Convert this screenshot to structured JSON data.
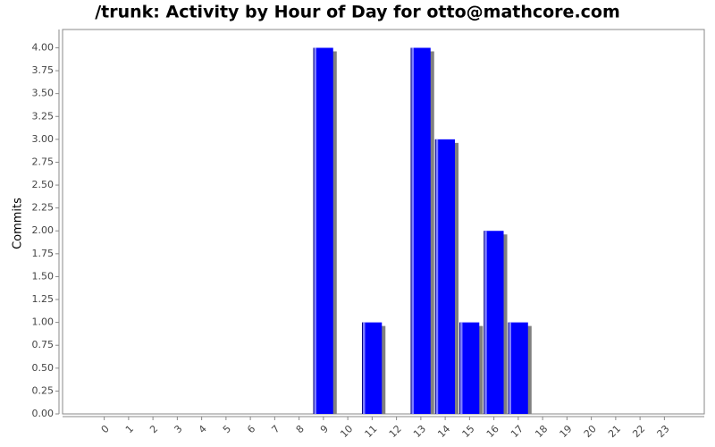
{
  "chart_data": {
    "type": "bar",
    "title": "/trunk: Activity by Hour of Day for otto@mathcore.com",
    "y_label": "Commits",
    "categories": [
      "0",
      "1",
      "2",
      "3",
      "4",
      "5",
      "6",
      "7",
      "8",
      "9",
      "10",
      "11",
      "12",
      "13",
      "14",
      "15",
      "16",
      "17",
      "18",
      "19",
      "20",
      "21",
      "22",
      "23"
    ],
    "values": [
      0,
      0,
      0,
      0,
      0,
      0,
      0,
      0,
      0,
      4,
      0,
      1,
      0,
      4,
      3,
      1,
      2,
      1,
      0,
      0,
      0,
      0,
      0,
      0
    ],
    "color": "#0000ff",
    "ylim": [
      0,
      4.2
    ],
    "yticks": [
      {
        "value": 0,
        "label": "0.00"
      },
      {
        "value": 0.25,
        "label": "0.25"
      },
      {
        "value": 0.5,
        "label": "0.50"
      },
      {
        "value": 0.75,
        "label": "0.75"
      },
      {
        "value": 1,
        "label": "1.00"
      },
      {
        "value": 1.25,
        "label": "1.25"
      },
      {
        "value": 1.5,
        "label": "1.50"
      },
      {
        "value": 1.75,
        "label": "1.75"
      },
      {
        "value": 2,
        "label": "2.00"
      },
      {
        "value": 2.25,
        "label": "2.25"
      },
      {
        "value": 2.5,
        "label": "2.50"
      },
      {
        "value": 2.75,
        "label": "2.75"
      },
      {
        "value": 3,
        "label": "3.00"
      },
      {
        "value": 3.25,
        "label": "3.25"
      },
      {
        "value": 3.5,
        "label": "3.50"
      },
      {
        "value": 3.75,
        "label": "3.75"
      },
      {
        "value": 4,
        "label": "4.00"
      }
    ],
    "grid": false
  }
}
